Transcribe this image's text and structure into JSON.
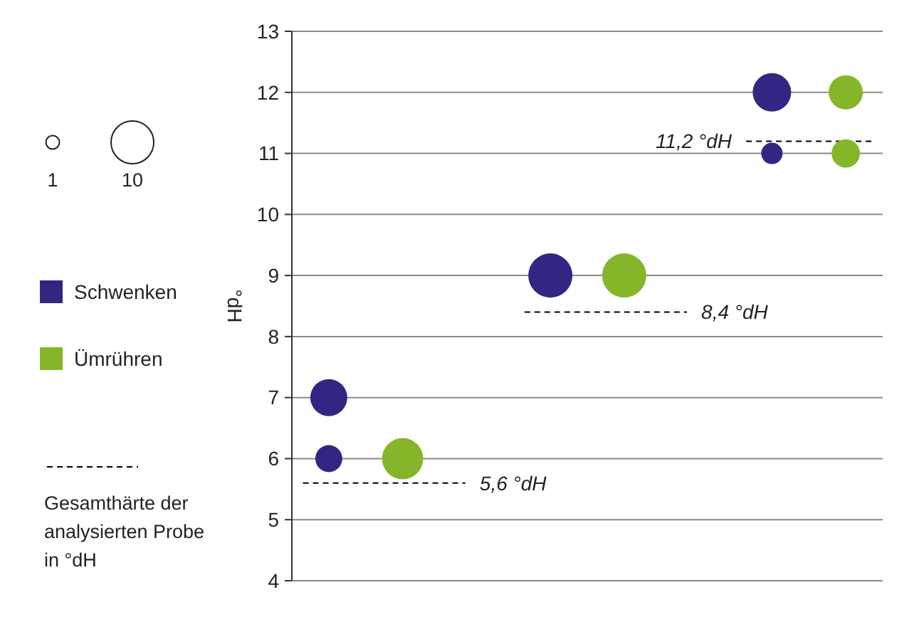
{
  "chart_data": {
    "type": "bubble",
    "ylabel": "°dH",
    "ylim": [
      4,
      13
    ],
    "yticks": [
      4,
      5,
      6,
      7,
      8,
      9,
      10,
      11,
      12,
      13
    ],
    "categories": [
      null,
      null,
      null,
      null,
      null,
      null,
      null,
      null
    ],
    "tick_labels": "y",
    "grid": "y",
    "legend": "left",
    "size_legend": [
      1,
      10
    ],
    "series": [
      {
        "name": "Schwenken",
        "color": "#312783",
        "values": [
          7,
          null,
          null,
          9,
          null,
          null,
          12,
          null
        ],
        "sizes": [
          7.5,
          null,
          null,
          10.7,
          null,
          null,
          8.1,
          null
        ]
      },
      {
        "color": "#312783",
        "values": [
          6,
          null,
          null,
          null,
          null,
          null,
          11,
          null
        ],
        "sizes": [
          4,
          null,
          null,
          null,
          null,
          null,
          2.5,
          null
        ]
      },
      {
        "name": "Ümrühren",
        "color": "#85b62a",
        "values": [
          null,
          6,
          null,
          null,
          9,
          null,
          null,
          12
        ],
        "sizes": [
          null,
          9.3,
          null,
          null,
          10.7,
          null,
          null,
          6.4
        ]
      },
      {
        "color": "#85b62a",
        "values": [
          null,
          null,
          null,
          null,
          null,
          null,
          null,
          11
        ],
        "sizes": [
          null,
          null,
          null,
          null,
          null,
          null,
          null,
          4.4
        ]
      }
    ],
    "ref_lines": [
      {
        "axis": "y",
        "value": 5.6,
        "label": "5,6 °dH",
        "color": "#000000",
        "line_style": "dashed"
      },
      {
        "axis": "y",
        "value": 8.4,
        "label": "8,4 °dH",
        "color": "#000000",
        "line_style": "dashed"
      },
      {
        "axis": "y",
        "value": 11.2,
        "label": "11,2 °dH",
        "color": "#000000",
        "line_style": "dashed"
      }
    ],
    "annotations": [
      "Gesamthärte der analysierten Probe in °dH"
    ]
  }
}
